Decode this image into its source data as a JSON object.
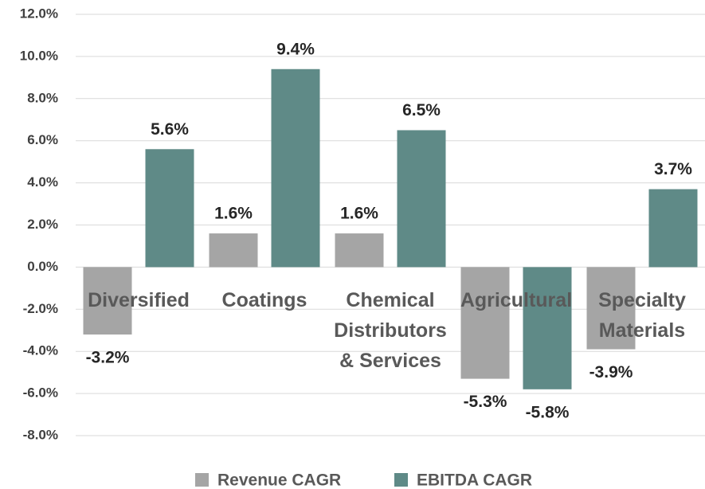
{
  "chart_data": {
    "type": "bar",
    "categories": [
      "Diversified",
      "Coatings",
      "Chemical\nDistributors\n& Services",
      "Agricultural",
      "Specialty\nMaterials"
    ],
    "series": [
      {
        "name": "Revenue CAGR",
        "color": "#a5a5a5",
        "values": [
          -3.2,
          1.6,
          1.6,
          -5.3,
          -3.9
        ],
        "value_labels": [
          "-3.2%",
          "1.6%",
          "1.6%",
          "-5.3%",
          "-3.9%"
        ]
      },
      {
        "name": "EBITDA CAGR",
        "color": "#5f8a87",
        "values": [
          5.6,
          9.4,
          6.5,
          -5.8,
          3.7
        ],
        "value_labels": [
          "5.6%",
          "9.4%",
          "6.5%",
          "-5.8%",
          "3.7%"
        ]
      }
    ],
    "ylim": [
      -8,
      12
    ],
    "yticks": [
      {
        "value": -8,
        "label": "-8.0%"
      },
      {
        "value": -6,
        "label": "-6.0%"
      },
      {
        "value": -4,
        "label": "-4.0%"
      },
      {
        "value": -2,
        "label": "-2.0%"
      },
      {
        "value": 0,
        "label": "0.0%"
      },
      {
        "value": 2,
        "label": "2.0%"
      },
      {
        "value": 4,
        "label": "4.0%"
      },
      {
        "value": 6,
        "label": "6.0%"
      },
      {
        "value": 8,
        "label": "8.0%"
      },
      {
        "value": 10,
        "label": "10.0%"
      },
      {
        "value": 12,
        "label": "12.0%"
      }
    ],
    "grid": true,
    "legend": "bottom"
  }
}
